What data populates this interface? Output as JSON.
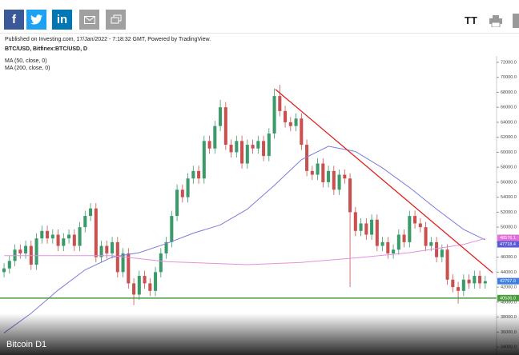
{
  "header": {
    "facebook": "f",
    "linkedin": "in",
    "font_size": "TT"
  },
  "chart_data": {
    "type": "candlestick",
    "published": "Published on Investing.com, 17/Jan/2022 - 7:18:32 GMT, Powered by TradingView.",
    "symbol": "BTC/USD, Bitfinex:BTC/USD, D",
    "caption": "Bitcoin D1",
    "xlim": [
      -0.75,
      91.1
    ],
    "ylim": [
      32940,
      72850
    ],
    "yticks": [
      {
        "value": 34000,
        "label": "34000.0"
      },
      {
        "value": 36000,
        "label": "36000.0"
      },
      {
        "value": 38000,
        "label": "38000.0"
      },
      {
        "value": 40000,
        "label": "40000.0"
      },
      {
        "value": 42000,
        "label": "42000.0"
      },
      {
        "value": 44000,
        "label": "44000.0"
      },
      {
        "value": 46000,
        "label": "46000.0"
      },
      {
        "value": 48000,
        "label": "48000.0"
      },
      {
        "value": 50000,
        "label": "50000.0"
      },
      {
        "value": 52000,
        "label": "52000.0"
      },
      {
        "value": 54000,
        "label": "54000.0"
      },
      {
        "value": 56000,
        "label": "56000.0"
      },
      {
        "value": 58000,
        "label": "58000.0"
      },
      {
        "value": 60000,
        "label": "60000.0"
      },
      {
        "value": 62000,
        "label": "62000.0"
      },
      {
        "value": 64000,
        "label": "64000.0"
      },
      {
        "value": 66000,
        "label": "66000.0"
      },
      {
        "value": 68000,
        "label": "68000.0"
      },
      {
        "value": 70000,
        "label": "70000.0"
      },
      {
        "value": 72000,
        "label": "72000.0"
      }
    ],
    "ohlc": {
      "up_color": "#3a9a6a",
      "down_color": "#c9504f",
      "open": [
        44000,
        44500,
        45500,
        47000,
        46500,
        47500,
        45000,
        48500,
        49500,
        48500,
        49000,
        47500,
        48500,
        49000,
        47500,
        50000,
        51500,
        52500,
        46000,
        47500,
        46500,
        48000,
        44000,
        46500,
        42500,
        41000,
        43500,
        42500,
        41500,
        44000,
        46500,
        48000,
        51500,
        55000,
        54000,
        56500,
        57500,
        56500,
        61500,
        60500,
        63500,
        66000,
        61000,
        60000,
        61500,
        58500,
        61000,
        60500,
        61500,
        59500,
        62500,
        67500,
        65500,
        64000,
        63500,
        64500,
        61000,
        57500,
        57000,
        58500,
        56000,
        57500,
        55000,
        57000,
        56500,
        52000,
        49500,
        50500,
        49000,
        51000,
        47500,
        48000,
        46500,
        47000,
        49000,
        48000,
        51500,
        50500,
        50000,
        47500,
        48000,
        46000,
        47000,
        43000,
        42000,
        41500,
        43000,
        42500,
        43500,
        42500
      ],
      "high": [
        45200,
        46200,
        47700,
        47700,
        48200,
        48200,
        49200,
        50200,
        50200,
        49700,
        49700,
        49200,
        49700,
        49700,
        50700,
        52200,
        53200,
        53200,
        48200,
        48200,
        48700,
        48700,
        47200,
        47200,
        43200,
        44200,
        44200,
        43200,
        44700,
        47200,
        48700,
        52200,
        55700,
        55700,
        57200,
        58200,
        58200,
        62200,
        62200,
        64200,
        67000,
        66700,
        61700,
        62200,
        62200,
        61700,
        61700,
        62200,
        62200,
        63200,
        68500,
        69000,
        66200,
        64700,
        65200,
        65200,
        61700,
        58200,
        59200,
        59200,
        58200,
        58200,
        57700,
        57700,
        57200,
        52700,
        51200,
        51200,
        51700,
        51700,
        48700,
        48700,
        47700,
        49700,
        49700,
        52200,
        52200,
        51200,
        50700,
        48700,
        48700,
        47700,
        47700,
        43700,
        42700,
        43700,
        43700,
        44200,
        44200,
        43500
      ],
      "low": [
        43300,
        43800,
        44800,
        45800,
        45800,
        44300,
        44300,
        47800,
        47800,
        47800,
        46800,
        46800,
        47800,
        46800,
        46800,
        49300,
        50800,
        45300,
        45300,
        45800,
        45800,
        43300,
        43300,
        41800,
        39600,
        40300,
        41800,
        40800,
        40800,
        43300,
        45800,
        47300,
        50800,
        53300,
        53300,
        55800,
        55800,
        55800,
        59800,
        59800,
        62800,
        60300,
        59300,
        59300,
        57800,
        57800,
        59800,
        59800,
        58800,
        58800,
        61800,
        64800,
        63300,
        62800,
        62800,
        60300,
        56800,
        56300,
        56300,
        55300,
        55300,
        54300,
        54300,
        55800,
        42000,
        48800,
        48800,
        48300,
        48300,
        46800,
        46800,
        45800,
        45800,
        46300,
        47300,
        47300,
        49800,
        49300,
        46800,
        46800,
        45300,
        45300,
        42300,
        41300,
        39800,
        40800,
        41800,
        41800,
        41800,
        41800
      ],
      "close": [
        44500,
        45500,
        47000,
        46500,
        47500,
        45000,
        48500,
        49500,
        48500,
        49000,
        47500,
        48500,
        49000,
        47500,
        50000,
        51500,
        52500,
        46000,
        47500,
        46500,
        48000,
        44000,
        46500,
        42500,
        41000,
        43500,
        42500,
        41500,
        44000,
        46500,
        48000,
        51500,
        55000,
        54000,
        56500,
        57500,
        56500,
        61500,
        60500,
        63500,
        66000,
        61000,
        60000,
        61500,
        58500,
        61000,
        60500,
        61500,
        59500,
        62500,
        67500,
        65500,
        64000,
        63500,
        64500,
        61000,
        57500,
        57000,
        58500,
        56000,
        57500,
        55000,
        57000,
        56500,
        52000,
        49500,
        50500,
        49000,
        51000,
        47500,
        48000,
        46500,
        47000,
        49000,
        48000,
        51500,
        50500,
        50000,
        47500,
        48000,
        46000,
        47000,
        43000,
        42000,
        41500,
        43000,
        42500,
        43500,
        42500,
        42800
      ]
    },
    "series": [
      {
        "name": "MA (50, close, 0)",
        "color": "#7b7be0",
        "x": [
          0,
          5,
          10,
          15,
          20,
          25,
          30,
          35,
          40,
          45,
          50,
          55,
          60,
          65,
          70,
          75,
          80,
          85,
          89
        ],
        "values": [
          35900,
          38500,
          41600,
          44300,
          46000,
          46600,
          47800,
          49200,
          50300,
          52400,
          55600,
          59000,
          60800,
          60100,
          57900,
          55300,
          52400,
          49700,
          48300
        ]
      },
      {
        "name": "MA (200, close, 0)",
        "color": "#e68fe0",
        "x": [
          0,
          20,
          30,
          45,
          55,
          65,
          75,
          85,
          89
        ],
        "values": [
          46200,
          46200,
          45400,
          45000,
          45300,
          45900,
          46600,
          47700,
          48500
        ]
      }
    ],
    "price_labels": [
      {
        "value": 48576.1,
        "label": "48576.1",
        "color": "#e16fd9"
      },
      {
        "value": 47718.4,
        "label": "47718.4",
        "color": "#5a5ad6"
      },
      {
        "value": 42797,
        "label": "42797.0",
        "color": "#3d7ee0"
      },
      {
        "value": 40536,
        "label": "40536.0",
        "color": "#4a9a3c"
      }
    ],
    "trendline": {
      "color": "#e02020",
      "x": [
        50.2,
        90.4
      ],
      "y": [
        68400,
        43900
      ]
    },
    "support": {
      "value": 40536,
      "color": "#4a9a3c"
    }
  }
}
